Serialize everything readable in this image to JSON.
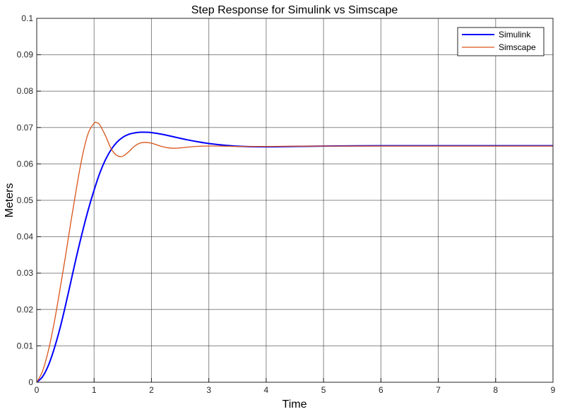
{
  "chart_data": {
    "type": "line",
    "title": "Step Response for Simulink vs Simscape",
    "xlabel": "Time",
    "ylabel": "Meters",
    "xlim": [
      0,
      9
    ],
    "ylim": [
      0,
      0.1
    ],
    "xticks": [
      "0",
      "1",
      "2",
      "3",
      "4",
      "5",
      "6",
      "7",
      "8",
      "9"
    ],
    "yticks": [
      "0",
      "0.01",
      "0.02",
      "0.03",
      "0.04",
      "0.05",
      "0.06",
      "0.07",
      "0.08",
      "0.09",
      "0.1"
    ],
    "grid": true,
    "legend_position": "top-right",
    "series": [
      {
        "name": "Simulink",
        "color": "#0000ff",
        "x": [
          0,
          0.1,
          0.2,
          0.3,
          0.4,
          0.5,
          0.6,
          0.7,
          0.8,
          0.9,
          1.0,
          1.1,
          1.2,
          1.3,
          1.4,
          1.5,
          1.6,
          1.7,
          1.8,
          1.9,
          2.0,
          2.2,
          2.4,
          2.6,
          2.8,
          3.0,
          3.3,
          3.6,
          4.0,
          4.5,
          5.0,
          6.0,
          7.0,
          8.0,
          9.0
        ],
        "values": [
          0,
          0.0015,
          0.0045,
          0.009,
          0.0145,
          0.021,
          0.028,
          0.035,
          0.0415,
          0.0475,
          0.0528,
          0.0575,
          0.0612,
          0.064,
          0.066,
          0.0673,
          0.0681,
          0.0685,
          0.0687,
          0.0687,
          0.0686,
          0.0681,
          0.0674,
          0.0667,
          0.0661,
          0.0656,
          0.0651,
          0.0648,
          0.0647,
          0.0648,
          0.0649,
          0.065,
          0.065,
          0.065,
          0.065
        ]
      },
      {
        "name": "Simscape",
        "color": "#d95319",
        "x": [
          0,
          0.1,
          0.2,
          0.3,
          0.4,
          0.5,
          0.6,
          0.7,
          0.8,
          0.9,
          1.0,
          1.05,
          1.1,
          1.2,
          1.3,
          1.4,
          1.5,
          1.6,
          1.7,
          1.8,
          1.9,
          2.0,
          2.1,
          2.2,
          2.3,
          2.4,
          2.5,
          2.7,
          2.9,
          3.2,
          3.5,
          4.0,
          5.0,
          6.0,
          7.0,
          8.0,
          9.0
        ],
        "values": [
          0,
          0.003,
          0.0085,
          0.016,
          0.025,
          0.0345,
          0.0445,
          0.054,
          0.0625,
          0.0685,
          0.0712,
          0.0713,
          0.0707,
          0.0677,
          0.0641,
          0.0623,
          0.0621,
          0.0633,
          0.0648,
          0.0657,
          0.0659,
          0.0657,
          0.0652,
          0.0647,
          0.0644,
          0.0643,
          0.0644,
          0.0647,
          0.0649,
          0.0649,
          0.0648,
          0.0648,
          0.0649,
          0.0649,
          0.0649,
          0.0649,
          0.0649
        ]
      }
    ]
  }
}
